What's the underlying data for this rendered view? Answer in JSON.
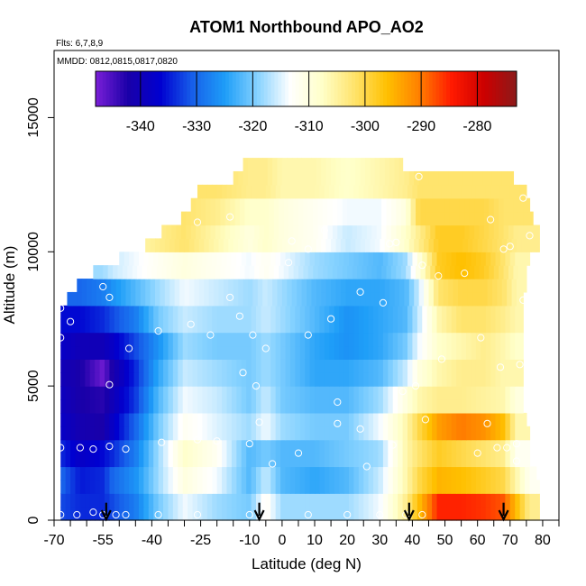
{
  "chart_data": {
    "type": "heatmap",
    "title": "ATOM1 Northbound APO_AO2",
    "annotations": {
      "flights": "Flts: 6,7,8,9",
      "dates": "MMDD: 0812,0815,0817,0820"
    },
    "xlabel": "Latitude (deg N)",
    "ylabel": "Altitude (m)",
    "xlim": [
      -70,
      85
    ],
    "ylim": [
      0,
      17500
    ],
    "xticks": [
      -70,
      -55,
      -40,
      -25,
      -10,
      0,
      10,
      20,
      30,
      40,
      50,
      60,
      70,
      80
    ],
    "xtick_labels": [
      "-70",
      "-55",
      "-40",
      "-25",
      "-10",
      "0",
      "10",
      "20",
      "30",
      "40",
      "50",
      "60",
      "70",
      "80"
    ],
    "xtick_minor": [
      -65,
      -60,
      -50,
      -45,
      -35,
      -30,
      -20,
      -15,
      -5,
      5,
      15,
      25,
      35,
      45,
      55,
      65,
      75,
      85
    ],
    "yticks": [
      0,
      5000,
      10000,
      15000
    ],
    "ytick_labels": [
      "0",
      "5000",
      "10000",
      "15000"
    ],
    "colorbar": {
      "range": [
        -348,
        -273
      ],
      "ticks": [
        -340,
        -330,
        -320,
        -310,
        -300,
        -290,
        -280
      ],
      "tick_labels": [
        "-340",
        "-330",
        "-320",
        "-310",
        "-300",
        "-290",
        "-280"
      ],
      "colors": [
        "#7b1fd8",
        "#1a00a8",
        "#0000d0",
        "#1760ea",
        "#1e9ef8",
        "#86d2ff",
        "#ffffff",
        "#ffffc8",
        "#ffe36b",
        "#ffc000",
        "#ff7f00",
        "#ff1a00",
        "#cc0000",
        "#8b1a1a"
      ]
    },
    "surface": {
      "levels_m": [
        0,
        500,
        1000,
        1500,
        2000,
        2500,
        3000,
        3500,
        4000,
        4500,
        5000,
        5500,
        6000,
        6500,
        7000,
        7500,
        8000,
        8500,
        9000,
        9500,
        10000,
        10500,
        11000,
        11500,
        12000,
        12500,
        13000
      ],
      "lat_extent": [
        [
          -68,
          79
        ],
        [
          -68,
          79
        ],
        [
          -68,
          79
        ],
        [
          -68,
          78
        ],
        [
          -68,
          76
        ],
        [
          -68,
          76
        ],
        [
          -68,
          76
        ],
        [
          -68,
          75
        ],
        [
          -68,
          74
        ],
        [
          -68,
          74
        ],
        [
          -68,
          74
        ],
        [
          -68,
          74
        ],
        [
          -68,
          74
        ],
        [
          -68,
          74
        ],
        [
          -68,
          74
        ],
        [
          -68,
          74
        ],
        [
          -66,
          74
        ],
        [
          -63,
          75
        ],
        [
          -58,
          75
        ],
        [
          -50,
          76
        ],
        [
          -42,
          79
        ],
        [
          -37,
          79
        ],
        [
          -31,
          77
        ],
        [
          -28,
          76
        ],
        [
          -26,
          75
        ],
        [
          -15,
          71
        ],
        [
          -12,
          37
        ]
      ],
      "lat_nodes": [
        -68,
        -62,
        -55,
        -52,
        -45,
        -38,
        -30,
        -20,
        -10,
        -5,
        0,
        10,
        20,
        30,
        38,
        42,
        48,
        55,
        62,
        68,
        72,
        76,
        79
      ],
      "ranges_by_level": [
        {
          "below_m": 1000,
          "values": [
            -332,
            -334,
            -334,
            -332,
            -328,
            -320,
            -314,
            -318,
            -320,
            -312,
            -318,
            -318,
            -318,
            -314,
            -304,
            -296,
            -285,
            -285,
            -286,
            -288,
            -296,
            -304,
            -304
          ]
        },
        {
          "below_m": 2000,
          "values": [
            -330,
            -335,
            -334,
            -330,
            -326,
            -318,
            -310,
            -314,
            -322,
            -316,
            -322,
            -324,
            -322,
            -316,
            -306,
            -300,
            -295,
            -296,
            -298,
            -300,
            -306,
            -312,
            -312
          ]
        },
        {
          "below_m": 3000,
          "values": [
            -334,
            -338,
            -336,
            -334,
            -328,
            -318,
            -308,
            -312,
            -322,
            -320,
            -322,
            -322,
            -320,
            -318,
            -306,
            -302,
            -298,
            -300,
            -302,
            -304,
            -312,
            -312,
            -312
          ]
        },
        {
          "below_m": 4000,
          "values": [
            -338,
            -341,
            -342,
            -338,
            -330,
            -320,
            -312,
            -315,
            -318,
            -314,
            -318,
            -320,
            -320,
            -314,
            -306,
            -300,
            -293,
            -290,
            -292,
            -296,
            -306,
            -306,
            -306
          ]
        },
        {
          "below_m": 5000,
          "values": [
            -339,
            -342,
            -343,
            -340,
            -333,
            -322,
            -314,
            -316,
            -320,
            -316,
            -320,
            -322,
            -322,
            -318,
            -310,
            -306,
            -304,
            -304,
            -305,
            -306,
            -310,
            -310,
            -310
          ]
        },
        {
          "below_m": 6000,
          "values": [
            -340,
            -342,
            -347,
            -342,
            -334,
            -324,
            -316,
            -318,
            -320,
            -318,
            -320,
            -324,
            -324,
            -322,
            -316,
            -310,
            -306,
            -304,
            -304,
            -306,
            -306,
            -306,
            -306
          ]
        },
        {
          "below_m": 7000,
          "values": [
            -338,
            -340,
            -340,
            -338,
            -332,
            -326,
            -318,
            -320,
            -320,
            -318,
            -320,
            -324,
            -326,
            -324,
            -320,
            -314,
            -308,
            -306,
            -304,
            -306,
            -308,
            -308,
            -308
          ]
        },
        {
          "below_m": 8000,
          "values": [
            -336,
            -336,
            -334,
            -332,
            -328,
            -320,
            -316,
            -318,
            -318,
            -316,
            -318,
            -322,
            -326,
            -324,
            -322,
            -316,
            -306,
            -302,
            -302,
            -304,
            -306,
            -306,
            -306
          ]
        },
        {
          "below_m": 9000,
          "values": [
            -330,
            -330,
            -328,
            -326,
            -322,
            -318,
            -314,
            -316,
            -318,
            -316,
            -318,
            -322,
            -324,
            -324,
            -322,
            -316,
            -302,
            -300,
            -300,
            -302,
            -306,
            -306,
            -306
          ]
        },
        {
          "below_m": 10000,
          "values": [
            -318,
            -318,
            -318,
            -316,
            -314,
            -312,
            -310,
            -312,
            -314,
            -312,
            -314,
            -318,
            -320,
            -322,
            -318,
            -310,
            -298,
            -296,
            -298,
            -302,
            -306,
            -306,
            -306
          ]
        },
        {
          "below_m": 11000,
          "values": [
            -310,
            -310,
            -310,
            -308,
            -306,
            -304,
            -302,
            -306,
            -310,
            -308,
            -310,
            -312,
            -316,
            -314,
            -308,
            -304,
            -298,
            -298,
            -300,
            -302,
            -304,
            -304,
            -304
          ]
        },
        {
          "below_m": 12000,
          "values": [
            -306,
            -306,
            -306,
            -306,
            -304,
            -302,
            -302,
            -304,
            -308,
            -308,
            -310,
            -312,
            -314,
            -314,
            -310,
            -300,
            -300,
            -300,
            -300,
            -302,
            -302,
            -302,
            -302
          ]
        },
        {
          "below_m": 13000,
          "values": [
            -304,
            -304,
            -304,
            -304,
            -304,
            -302,
            -302,
            -302,
            -304,
            -304,
            -306,
            -306,
            -308,
            -306,
            -304,
            -302,
            -302,
            -302,
            -302,
            -302,
            -302,
            -302,
            -302
          ]
        }
      ]
    },
    "observations_lat_alt": [
      [
        -68,
        200
      ],
      [
        -63,
        200
      ],
      [
        -58,
        300
      ],
      [
        -55,
        200
      ],
      [
        -51,
        200
      ],
      [
        -48,
        200
      ],
      [
        -38,
        200
      ],
      [
        -26,
        200
      ],
      [
        -10,
        200
      ],
      [
        -5,
        200
      ],
      [
        8,
        200
      ],
      [
        20,
        200
      ],
      [
        30,
        200
      ],
      [
        38,
        200
      ],
      [
        43,
        200
      ],
      [
        -68,
        2700
      ],
      [
        -62,
        2700
      ],
      [
        -58,
        2650
      ],
      [
        -53,
        2750
      ],
      [
        -48,
        2650
      ],
      [
        -37,
        2900
      ],
      [
        -26,
        3000
      ],
      [
        -20,
        2950
      ],
      [
        -10,
        2850
      ],
      [
        -7,
        3650
      ],
      [
        -3,
        2100
      ],
      [
        5,
        2500
      ],
      [
        17,
        3600
      ],
      [
        24,
        3400
      ],
      [
        26,
        2000
      ],
      [
        34,
        2800
      ],
      [
        44,
        3750
      ],
      [
        60,
        2500
      ],
      [
        63,
        3600
      ],
      [
        66,
        2700
      ],
      [
        69,
        2700
      ],
      [
        72,
        2200
      ],
      [
        72,
        2850
      ],
      [
        -53,
        5050
      ],
      [
        -12,
        5500
      ],
      [
        -8,
        5000
      ],
      [
        8,
        6900
      ],
      [
        17,
        4400
      ],
      [
        37,
        4800
      ],
      [
        41,
        5000
      ],
      [
        49,
        6000
      ],
      [
        61,
        6800
      ],
      [
        67,
        5700
      ],
      [
        73,
        5800
      ],
      [
        -68,
        6800
      ],
      [
        -65,
        7400
      ],
      [
        -55,
        8700
      ],
      [
        -53,
        8300
      ],
      [
        -47,
        6400
      ],
      [
        -38,
        7050
      ],
      [
        -28,
        7300
      ],
      [
        -22,
        6900
      ],
      [
        -16,
        8300
      ],
      [
        -13,
        7600
      ],
      [
        -5,
        6400
      ],
      [
        -9,
        6900
      ],
      [
        2,
        9600
      ],
      [
        8,
        10100
      ],
      [
        15,
        7500
      ],
      [
        24,
        8500
      ],
      [
        31,
        8100
      ],
      [
        33,
        10300
      ],
      [
        43,
        9500
      ],
      [
        48,
        9100
      ],
      [
        56,
        9200
      ],
      [
        68,
        10100
      ],
      [
        70,
        10200
      ],
      [
        74,
        8200
      ],
      [
        76,
        10600
      ],
      [
        -68,
        7900
      ],
      [
        -26,
        11100
      ],
      [
        -16,
        11300
      ],
      [
        3,
        10400
      ],
      [
        13,
        10800
      ],
      [
        35,
        10350
      ],
      [
        42,
        12800
      ],
      [
        64,
        11200
      ],
      [
        74,
        12000
      ]
    ],
    "arrows_lat": [
      -54,
      -7,
      39,
      68
    ]
  }
}
